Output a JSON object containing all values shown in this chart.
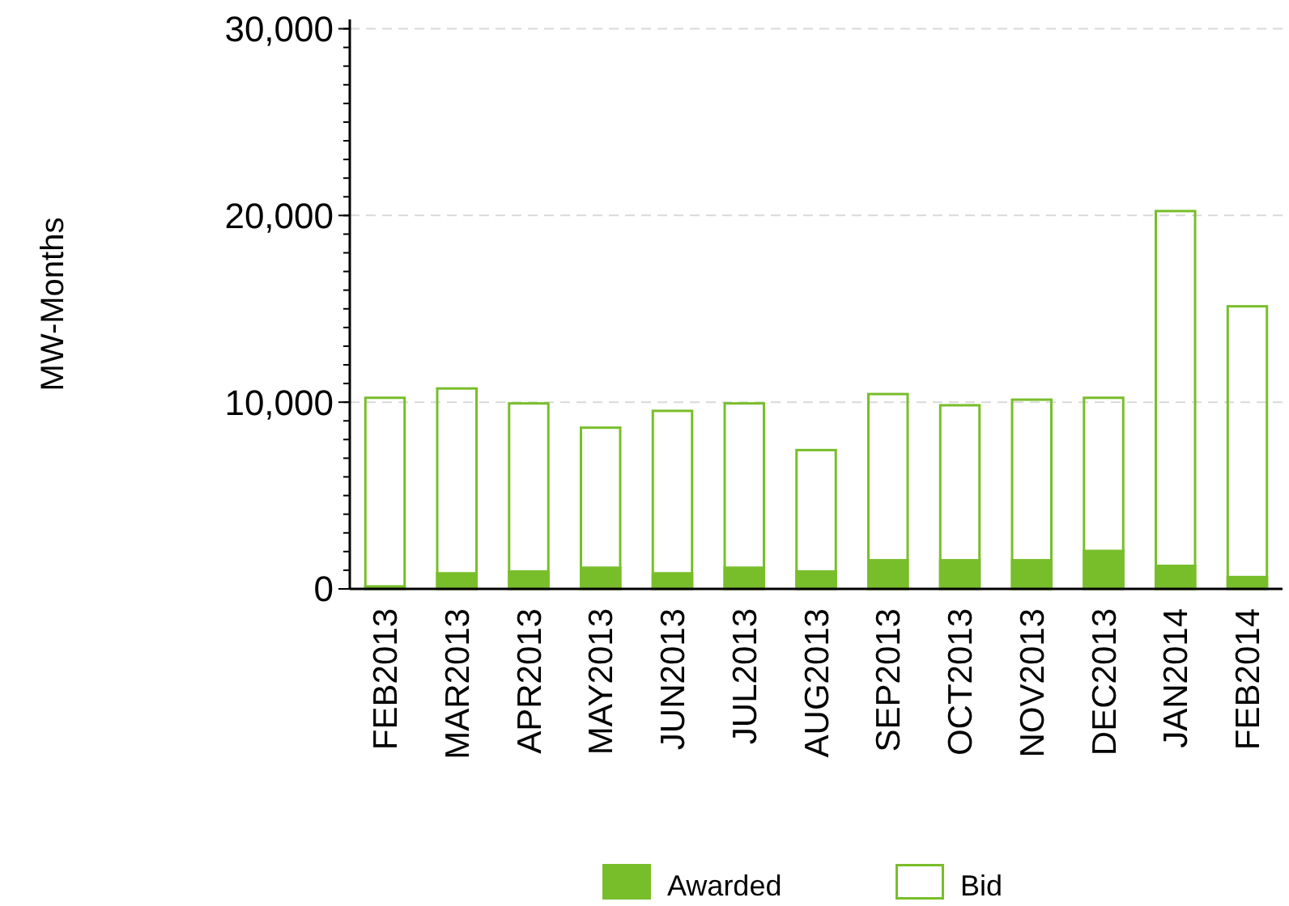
{
  "chart_data": {
    "type": "bar",
    "ylabel": "MW-Months",
    "categories": [
      "FEB2013",
      "MAR2013",
      "APR2013",
      "MAY2013",
      "JUN2013",
      "JUL2013",
      "AUG2013",
      "SEP2013",
      "OCT2013",
      "NOV2013",
      "DEC2013",
      "JAN2014",
      "FEB2014"
    ],
    "series": [
      {
        "name": "Awarded",
        "color": "#78be2a",
        "values": [
          200,
          900,
          1000,
          1200,
          900,
          1200,
          1000,
          1600,
          1600,
          1600,
          2100,
          1300,
          700
        ]
      },
      {
        "name": "Bid",
        "color": "#78be2a",
        "values": [
          10300,
          10800,
          10000,
          8700,
          9600,
          10000,
          7500,
          10500,
          9900,
          10200,
          10300,
          20300,
          15200
        ]
      }
    ],
    "ylim": [
      0,
      30500
    ],
    "yticks": [
      {
        "value": 0,
        "label": "0"
      },
      {
        "value": 10000,
        "label": "10,000"
      },
      {
        "value": 20000,
        "label": "20,000"
      },
      {
        "value": 30000,
        "label": "30,000"
      }
    ],
    "grid": "y",
    "legend": "bottom"
  }
}
